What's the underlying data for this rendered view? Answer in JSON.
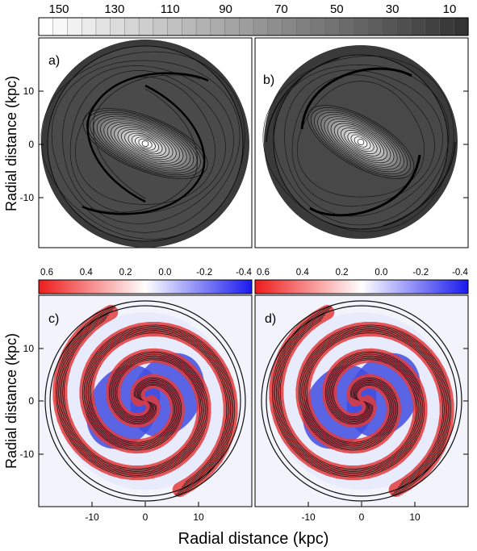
{
  "axes": {
    "ylabel_top": "Radial distance (kpc)",
    "ylabel_bottom": "Radial distance (kpc)",
    "xlabel": "Radial distance (kpc)",
    "y_ticks": [
      "10",
      "0",
      "-10"
    ],
    "x_ticks": [
      "-10",
      "0",
      "10"
    ]
  },
  "colorbar_top": {
    "labels": [
      "150",
      "130",
      "110",
      "90",
      "70",
      "50",
      "30",
      "10"
    ],
    "colors": [
      "#ffffff",
      "#333333"
    ]
  },
  "colorbar_bottom": {
    "labels": [
      "0.6",
      "0.4",
      "0.2",
      "0.0",
      "-0.2",
      "-0.4"
    ],
    "colors": [
      "#ee1c1c",
      "#ffffff",
      "#1a1aee"
    ]
  },
  "panels": [
    {
      "id": "a",
      "label": "a)"
    },
    {
      "id": "b",
      "label": "b)"
    },
    {
      "id": "c",
      "label": "c)"
    },
    {
      "id": "d",
      "label": "d)"
    }
  ]
}
